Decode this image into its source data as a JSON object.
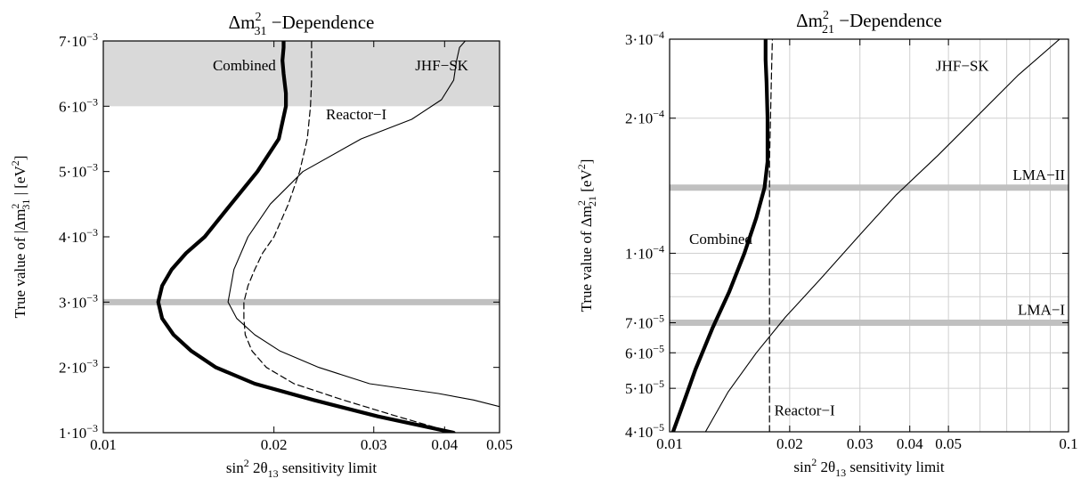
{
  "colors": {
    "band": "#d9d9d9",
    "hline": "#c0c0c0",
    "curve": "#000000",
    "grid": "#d0d0d0"
  },
  "chart_data": [
    {
      "type": "line",
      "title": "Δm²₃₁ −Dependence",
      "title_parts": {
        "pre": "Δm",
        "sup": "2",
        "sub": "31",
        "post": " −Dependence"
      },
      "xlabel_parts": {
        "pre": "sin",
        "sup": "2",
        "mid": " 2θ",
        "sub": "13",
        "post": "  sensitivity limit"
      },
      "ylabel_parts": {
        "pre": "True value of |Δm",
        "sup": "2",
        "sub": "31",
        "post": " | [eV",
        "sup2": "2",
        "post2": "]"
      },
      "xscale": "log",
      "xlim": [
        0.01,
        0.05
      ],
      "yscale": "linear",
      "ylim": [
        0.001,
        0.007
      ],
      "xticks": [
        0.01,
        0.02,
        0.03,
        0.04,
        0.05
      ],
      "xticklabels": [
        "0.01",
        "0.02",
        "0.03",
        "0.04",
        "0.05"
      ],
      "yticks": [
        0.001,
        0.002,
        0.003,
        0.004,
        0.005,
        0.006,
        0.007
      ],
      "yticklabels": [
        "1·10",
        "2·10",
        "3·10",
        "4·10",
        "5·10",
        "6·10",
        "7·10"
      ],
      "ytickexp": "−3",
      "grid": false,
      "bands": [
        {
          "ymin": 0.006,
          "ymax": 0.007
        }
      ],
      "hlines": [
        {
          "y": 0.003
        }
      ],
      "series": [
        {
          "name": "Combined",
          "style": "thick",
          "x": [
            0.0415,
            0.0305,
            0.0235,
            0.0185,
            0.0158,
            0.0143,
            0.0133,
            0.0127,
            0.0125,
            0.0127,
            0.0132,
            0.014,
            0.0151,
            0.0168,
            0.0187,
            0.0204,
            0.021,
            0.021,
            0.0208,
            0.0207,
            0.0208,
            0.0208
          ],
          "y": [
            0.001,
            0.00125,
            0.0015,
            0.00175,
            0.002,
            0.00225,
            0.0025,
            0.00275,
            0.003,
            0.00325,
            0.0035,
            0.00375,
            0.004,
            0.0045,
            0.005,
            0.0055,
            0.006,
            0.0062,
            0.0065,
            0.0067,
            0.0069,
            0.007
          ]
        },
        {
          "name": "Reactor−I",
          "style": "dashed",
          "x": [
            0.0415,
            0.033,
            0.0265,
            0.0217,
            0.0194,
            0.0183,
            0.0178,
            0.0177,
            0.0177,
            0.018,
            0.0185,
            0.0191,
            0.02,
            0.0212,
            0.0222,
            0.0229,
            0.0232,
            0.0233,
            0.0233,
            0.0233
          ],
          "y": [
            0.001,
            0.00125,
            0.0015,
            0.00175,
            0.002,
            0.00225,
            0.0025,
            0.00275,
            0.003,
            0.00325,
            0.0035,
            0.00375,
            0.004,
            0.0045,
            0.005,
            0.0055,
            0.006,
            0.0064,
            0.0068,
            0.007
          ]
        },
        {
          "name": "JHF−SK",
          "style": "thin",
          "x": [
            0.05,
            0.045,
            0.039,
            0.0295,
            0.024,
            0.0205,
            0.0185,
            0.0172,
            0.0166,
            0.017,
            0.018,
            0.0197,
            0.0225,
            0.0285,
            0.035,
            0.0395,
            0.0415,
            0.042,
            0.0425,
            0.0435
          ],
          "y": [
            0.0014,
            0.0015,
            0.0016,
            0.00175,
            0.002,
            0.00225,
            0.0025,
            0.00275,
            0.003,
            0.0035,
            0.004,
            0.0045,
            0.005,
            0.0055,
            0.0058,
            0.0061,
            0.0064,
            0.0067,
            0.0069,
            0.007
          ]
        }
      ],
      "annotations": [
        {
          "text": "Combined",
          "x": 0.0156,
          "y": 0.00655
        },
        {
          "text": "JHF−SK",
          "x": 0.0355,
          "y": 0.00655
        },
        {
          "text": "Reactor−I",
          "x": 0.0247,
          "y": 0.0058
        }
      ]
    },
    {
      "type": "line",
      "title": "Δm²₂₁ −Dependence",
      "title_parts": {
        "pre": "Δm",
        "sup": "2",
        "sub": "21",
        "post": " −Dependence"
      },
      "xlabel_parts": {
        "pre": "sin",
        "sup": "2",
        "mid": " 2θ",
        "sub": "13",
        "post": "  sensitivity limit"
      },
      "ylabel_parts": {
        "pre": "True value of Δm",
        "sup": "2",
        "sub": "21",
        "post": " [eV",
        "sup2": "2",
        "post2": "]"
      },
      "xscale": "log",
      "xlim": [
        0.01,
        0.1
      ],
      "yscale": "log",
      "ylim": [
        4e-05,
        0.0003
      ],
      "xticks": [
        0.01,
        0.02,
        0.03,
        0.04,
        0.05,
        0.1
      ],
      "xticklabels": [
        "0.01",
        "0.02",
        "0.03",
        "0.04",
        "0.05",
        "0.1"
      ],
      "yticks": [
        4e-05,
        5e-05,
        6e-05,
        7e-05,
        0.0001,
        0.0002,
        0.0003
      ],
      "yticklabels": [
        "4·10",
        "5·10",
        "6·10",
        "7·10",
        "1·10",
        "2·10",
        "3·10"
      ],
      "ytickexps": [
        "−5",
        "−5",
        "−5",
        "−5",
        "−4",
        "−4",
        "−4"
      ],
      "xgrid": [
        0.01,
        0.02,
        0.03,
        0.04,
        0.05,
        0.06,
        0.07,
        0.08,
        0.09,
        0.1
      ],
      "ygrid": [
        4e-05,
        5e-05,
        6e-05,
        7e-05,
        8e-05,
        9e-05,
        0.0001,
        0.0002,
        0.0003
      ],
      "grid": true,
      "hlines": [
        {
          "y": 7e-05,
          "label": "LMA−I"
        },
        {
          "y": 0.00014,
          "label": "LMA−II"
        }
      ],
      "series": [
        {
          "name": "Combined",
          "style": "thick",
          "x": [
            0.0102,
            0.0108,
            0.0116,
            0.0128,
            0.0141,
            0.0154,
            0.0165,
            0.0173,
            0.0176,
            0.0176,
            0.0175,
            0.0174,
            0.0174
          ],
          "y": [
            4e-05,
            4.6e-05,
            5.5e-05,
            6.8e-05,
            8.2e-05,
            0.0001,
            0.00012,
            0.00014,
            0.00016,
            0.0002,
            0.00024,
            0.00027,
            0.0003
          ]
        },
        {
          "name": "Reactor−I",
          "style": "dashed",
          "x": [
            0.0178,
            0.0178,
            0.0178,
            0.0178,
            0.0178,
            0.0179,
            0.018,
            0.0181
          ],
          "y": [
            4e-05,
            7e-05,
            0.0001,
            0.00014,
            0.00016,
            0.0002,
            0.00025,
            0.0003
          ]
        },
        {
          "name": "JHF−SK",
          "style": "thin",
          "x": [
            0.0123,
            0.014,
            0.0165,
            0.0195,
            0.024,
            0.03,
            0.037,
            0.047,
            0.06,
            0.075,
            0.095
          ],
          "y": [
            4e-05,
            4.9e-05,
            6e-05,
            7.2e-05,
            8.8e-05,
            0.00011,
            0.000135,
            0.000165,
            0.000205,
            0.00025,
            0.0003
          ]
        }
      ],
      "annotations": [
        {
          "text": "Combined",
          "x": 0.0112,
          "y": 0.000105
        },
        {
          "text": "JHF−SK",
          "x": 0.0465,
          "y": 0.000255
        },
        {
          "text": "Reactor−I",
          "x": 0.0183,
          "y": 4.35e-05
        }
      ]
    }
  ]
}
